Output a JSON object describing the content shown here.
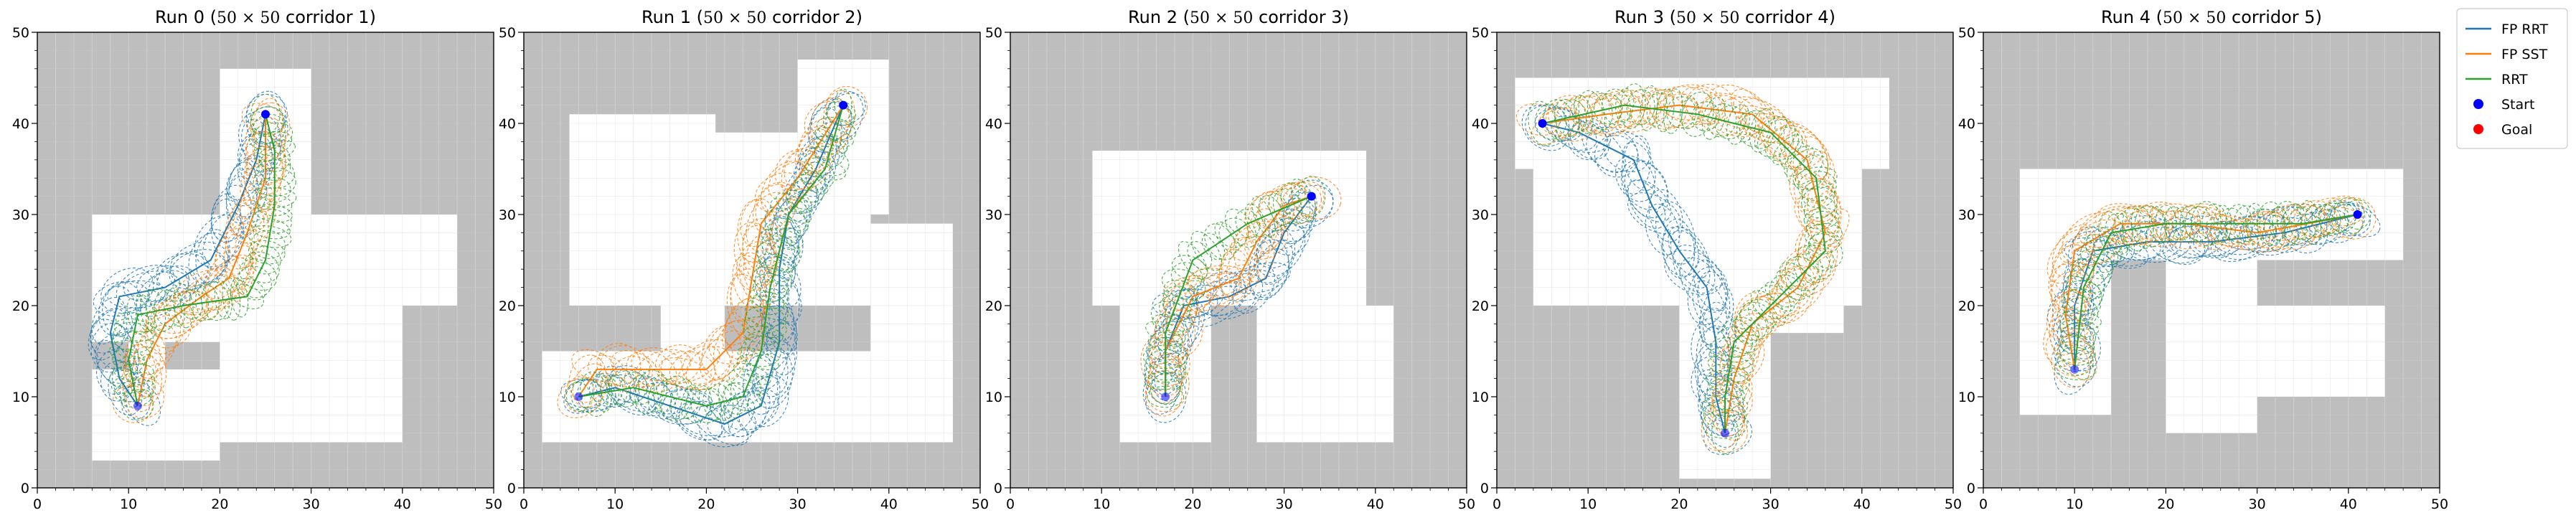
{
  "colors": {
    "fp_rrt": "#1f77b4",
    "fp_sst": "#ff7f0e",
    "rrt": "#2ca02c",
    "start": "#0000ff",
    "goal": "#ff0000",
    "obstacle": "#bebebe",
    "free": "#ffffff",
    "grid": "#d0d0d0"
  },
  "legend": {
    "placement": "outside right, top",
    "entries": [
      {
        "label": "FP RRT",
        "kind": "line",
        "color": "#1f77b4"
      },
      {
        "label": "FP SST",
        "kind": "line",
        "color": "#ff7f0e"
      },
      {
        "label": "RRT",
        "kind": "line",
        "color": "#2ca02c"
      },
      {
        "label": "Start",
        "kind": "marker",
        "color": "#0000ff"
      },
      {
        "label": "Goal",
        "kind": "marker",
        "color": "#ff0000"
      }
    ]
  },
  "chart_data": [
    {
      "type": "line",
      "title": "Run 0 ($50\\times50$ corridor 1)",
      "title_parts": {
        "prefix": "Run 0 (",
        "math": "50 × 50",
        "suffix": " corridor 1)"
      },
      "xlim": [
        0,
        50
      ],
      "ylim": [
        0,
        50
      ],
      "xticks": [
        0,
        10,
        20,
        30,
        40,
        50
      ],
      "yticks": [
        0,
        10,
        20,
        30,
        40,
        50
      ],
      "grid": true,
      "free_rects": [
        [
          6,
          3,
          20,
          13
        ],
        [
          6,
          16,
          17,
          30
        ],
        [
          13,
          16,
          29,
          30
        ],
        [
          20,
          5,
          40,
          25
        ],
        [
          30,
          20,
          46,
          30
        ],
        [
          20,
          25,
          30,
          30
        ],
        [
          20,
          30,
          30,
          39
        ],
        [
          20,
          39,
          30,
          46
        ],
        [
          10,
          13,
          14,
          16
        ]
      ],
      "start": [
        25,
        41
      ],
      "goal": [
        11,
        9
      ],
      "series": [
        {
          "name": "FP RRT",
          "color": "#1f77b4",
          "path": [
            [
              11,
              9
            ],
            [
              9,
              12
            ],
            [
              8,
              17
            ],
            [
              9,
              21
            ],
            [
              14,
              22
            ],
            [
              19,
              25
            ],
            [
              22,
              31
            ],
            [
              24,
              36
            ],
            [
              25,
              41
            ]
          ]
        },
        {
          "name": "FP SST",
          "color": "#ff7f0e",
          "path": [
            [
              11,
              9
            ],
            [
              12,
              14
            ],
            [
              14,
              18
            ],
            [
              18,
              21
            ],
            [
              21,
              23
            ],
            [
              23,
              28
            ],
            [
              25,
              34
            ],
            [
              25,
              41
            ]
          ]
        },
        {
          "name": "RRT",
          "color": "#2ca02c",
          "path": [
            [
              11,
              9
            ],
            [
              10,
              14
            ],
            [
              11,
              19
            ],
            [
              16,
              20
            ],
            [
              23,
              21
            ],
            [
              25,
              25
            ],
            [
              26,
              31
            ],
            [
              26,
              37
            ],
            [
              25,
              41
            ]
          ]
        }
      ]
    },
    {
      "type": "line",
      "title": "Run 1 ($50\\times50$ corridor 2)",
      "title_parts": {
        "prefix": "Run 1 (",
        "math": "50 × 50",
        "suffix": " corridor 2)"
      },
      "xlim": [
        0,
        50
      ],
      "ylim": [
        0,
        50
      ],
      "xticks": [
        0,
        10,
        20,
        30,
        40,
        50
      ],
      "yticks": [
        0,
        10,
        20,
        30,
        40,
        50
      ],
      "grid": true,
      "free_rects": [
        [
          2,
          5,
          47,
          15
        ],
        [
          5,
          20,
          21,
          41
        ],
        [
          21,
          20,
          38,
          39
        ],
        [
          30,
          30,
          40,
          47
        ],
        [
          38,
          5,
          47,
          29
        ],
        [
          15,
          15,
          22,
          20
        ]
      ],
      "start": [
        35,
        42
      ],
      "goal": [
        6,
        10
      ],
      "series": [
        {
          "name": "FP RRT",
          "color": "#1f77b4",
          "path": [
            [
              6,
              10
            ],
            [
              10,
              11
            ],
            [
              16,
              9
            ],
            [
              22,
              7
            ],
            [
              26,
              9
            ],
            [
              28,
              16
            ],
            [
              28,
              24
            ],
            [
              29,
              30
            ],
            [
              32,
              35
            ],
            [
              35,
              42
            ]
          ]
        },
        {
          "name": "FP SST",
          "color": "#ff7f0e",
          "path": [
            [
              6,
              10
            ],
            [
              8,
              13
            ],
            [
              20,
              13
            ],
            [
              24,
              17
            ],
            [
              25,
              23
            ],
            [
              26,
              29
            ],
            [
              30,
              34
            ],
            [
              35,
              42
            ]
          ]
        },
        {
          "name": "RRT",
          "color": "#2ca02c",
          "path": [
            [
              6,
              10
            ],
            [
              12,
              11
            ],
            [
              20,
              9
            ],
            [
              24,
              10
            ],
            [
              26,
              15
            ],
            [
              27,
              22
            ],
            [
              29,
              30
            ],
            [
              33,
              35
            ],
            [
              35,
              42
            ]
          ]
        }
      ]
    },
    {
      "type": "line",
      "title": "Run 2 ($50\\times50$ corridor 3)",
      "title_parts": {
        "prefix": "Run 2 (",
        "math": "50 × 50",
        "suffix": " corridor 3)"
      },
      "xlim": [
        0,
        50
      ],
      "ylim": [
        0,
        50
      ],
      "xticks": [
        0,
        10,
        20,
        30,
        40,
        50
      ],
      "yticks": [
        0,
        10,
        20,
        30,
        40,
        50
      ],
      "grid": true,
      "free_rects": [
        [
          9,
          20,
          39,
          37
        ],
        [
          12,
          5,
          22,
          20
        ],
        [
          27,
          5,
          42,
          20
        ],
        [
          22,
          20,
          27,
          25
        ]
      ],
      "start": [
        33,
        32
      ],
      "goal": [
        17,
        10
      ],
      "series": [
        {
          "name": "FP RRT",
          "color": "#1f77b4",
          "path": [
            [
              17,
              10
            ],
            [
              17,
              15
            ],
            [
              19,
              20
            ],
            [
              24,
              21
            ],
            [
              28,
              23
            ],
            [
              30,
              28
            ],
            [
              33,
              32
            ]
          ]
        },
        {
          "name": "FP SST",
          "color": "#ff7f0e",
          "path": [
            [
              17,
              10
            ],
            [
              17,
              15
            ],
            [
              20,
              21
            ],
            [
              25,
              23
            ],
            [
              27,
              27
            ],
            [
              30,
              31
            ],
            [
              33,
              32
            ]
          ]
        },
        {
          "name": "RRT",
          "color": "#2ca02c",
          "path": [
            [
              17,
              10
            ],
            [
              17,
              17
            ],
            [
              20,
              25
            ],
            [
              26,
              29
            ],
            [
              33,
              32
            ]
          ]
        }
      ]
    },
    {
      "type": "line",
      "title": "Run 3 ($50\\times50$ corridor 4)",
      "title_parts": {
        "prefix": "Run 3 (",
        "math": "50 × 50",
        "suffix": " corridor 4)"
      },
      "xlim": [
        0,
        50
      ],
      "ylim": [
        0,
        50
      ],
      "xticks": [
        0,
        10,
        20,
        30,
        40,
        50
      ],
      "yticks": [
        0,
        10,
        20,
        30,
        40,
        50
      ],
      "grid": true,
      "free_rects": [
        [
          2,
          35,
          43,
          45
        ],
        [
          4,
          20,
          40,
          35
        ],
        [
          20,
          1,
          30,
          20
        ],
        [
          30,
          17,
          38,
          20
        ]
      ],
      "start": [
        5,
        40
      ],
      "goal": [
        25,
        6
      ],
      "series": [
        {
          "name": "FP RRT",
          "color": "#1f77b4",
          "path": [
            [
              5,
              40
            ],
            [
              9,
              39
            ],
            [
              15,
              36
            ],
            [
              17,
              31
            ],
            [
              20,
              26
            ],
            [
              23,
              22
            ],
            [
              24,
              16
            ],
            [
              24,
              10
            ],
            [
              25,
              6
            ]
          ]
        },
        {
          "name": "FP SST",
          "color": "#ff7f0e",
          "path": [
            [
              5,
              40
            ],
            [
              12,
              41
            ],
            [
              20,
              42
            ],
            [
              28,
              41
            ],
            [
              34,
              36
            ],
            [
              36,
              28
            ],
            [
              33,
              22
            ],
            [
              28,
              18
            ],
            [
              26,
              12
            ],
            [
              25,
              6
            ]
          ]
        },
        {
          "name": "RRT",
          "color": "#2ca02c",
          "path": [
            [
              5,
              40
            ],
            [
              14,
              42
            ],
            [
              22,
              41
            ],
            [
              30,
              39
            ],
            [
              35,
              34
            ],
            [
              36,
              26
            ],
            [
              31,
              21
            ],
            [
              26,
              16
            ],
            [
              25,
              10
            ],
            [
              25,
              6
            ]
          ]
        }
      ]
    },
    {
      "type": "line",
      "title": "Run 4 ($50\\times50$ corridor 5)",
      "title_parts": {
        "prefix": "Run 4 (",
        "math": "50 × 50",
        "suffix": " corridor 5)"
      },
      "xlim": [
        0,
        50
      ],
      "ylim": [
        0,
        50
      ],
      "xticks": [
        0,
        10,
        20,
        30,
        40,
        50
      ],
      "yticks": [
        0,
        10,
        20,
        30,
        40,
        50
      ],
      "grid": true,
      "free_rects": [
        [
          4,
          8,
          14,
          35
        ],
        [
          14,
          25,
          46,
          35
        ],
        [
          20,
          6,
          30,
          25
        ],
        [
          30,
          10,
          44,
          20
        ]
      ],
      "start": [
        41,
        30
      ],
      "goal": [
        10,
        13
      ],
      "series": [
        {
          "name": "FP RRT",
          "color": "#1f77b4",
          "path": [
            [
              10,
              13
            ],
            [
              10,
              20
            ],
            [
              12,
              26
            ],
            [
              18,
              27
            ],
            [
              25,
              27
            ],
            [
              33,
              28
            ],
            [
              41,
              30
            ]
          ]
        },
        {
          "name": "FP SST",
          "color": "#ff7f0e",
          "path": [
            [
              10,
              13
            ],
            [
              9,
              19
            ],
            [
              10,
              26
            ],
            [
              15,
              29
            ],
            [
              22,
              29
            ],
            [
              30,
              28
            ],
            [
              41,
              30
            ]
          ]
        },
        {
          "name": "RRT",
          "color": "#2ca02c",
          "path": [
            [
              10,
              13
            ],
            [
              11,
              22
            ],
            [
              14,
              28
            ],
            [
              20,
              29
            ],
            [
              28,
              29
            ],
            [
              35,
              29
            ],
            [
              41,
              30
            ]
          ]
        }
      ]
    }
  ]
}
